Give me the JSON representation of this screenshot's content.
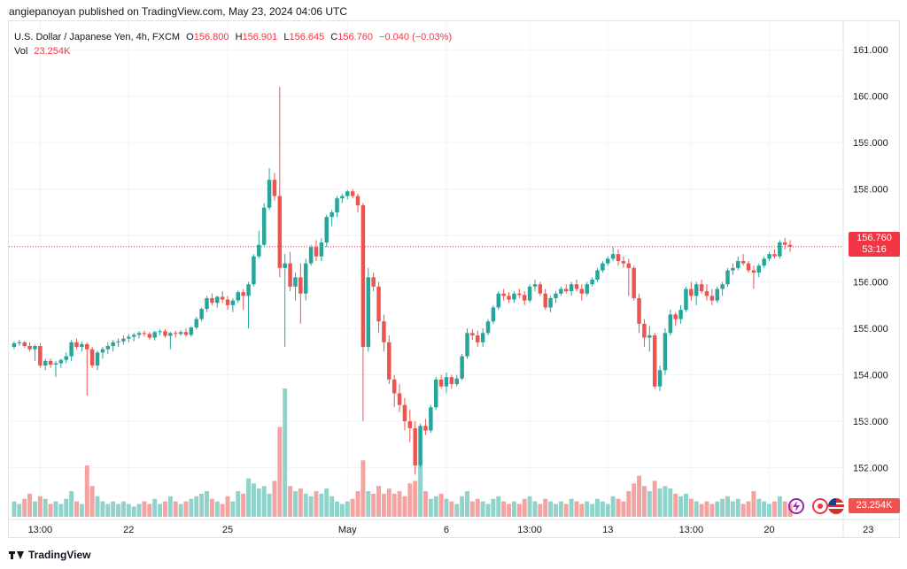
{
  "header": {
    "published": "angiepanoyan published on TradingView.com, May 23, 2024 04:06 UTC"
  },
  "legend": {
    "symbol": "U.S. Dollar / Japanese Yen, 4h, FXCM",
    "open_label": "O",
    "open": "156.800",
    "high_label": "H",
    "high": "156.901",
    "low_label": "L",
    "low": "156.645",
    "close_label": "C",
    "close": "156.760",
    "change": "−0.040 (−0.03%)",
    "vol_label": "Vol",
    "vol": "23.254K"
  },
  "price_badge": {
    "price": "156.760",
    "countdown": "53:16"
  },
  "vol_badge": "23.254K",
  "footer": {
    "brand": "TradingView"
  },
  "colors": {
    "up": "#26a69a",
    "down": "#ef5350",
    "up_vol": "#8fd3cb",
    "down_vol": "#f5a3a1",
    "grid": "#f0f3fa",
    "text": "#131722",
    "price_line": "#f23645"
  },
  "chart_data": {
    "type": "candlestick",
    "title": "U.S. Dollar / Japanese Yen, 4h, FXCM",
    "ylim": [
      151.4,
      161.5
    ],
    "y_ticks": [
      "161.000",
      "160.000",
      "159.000",
      "158.000",
      "157.000",
      "156.000",
      "155.000",
      "154.000",
      "153.000",
      "152.000"
    ],
    "x_ticks": [
      {
        "label": "13:00",
        "i": 5
      },
      {
        "label": "22",
        "i": 22
      },
      {
        "label": "25",
        "i": 41
      },
      {
        "label": "May",
        "i": 64
      },
      {
        "label": "6",
        "i": 83
      },
      {
        "label": "13:00",
        "i": 99
      },
      {
        "label": "13",
        "i": 114
      },
      {
        "label": "13:00",
        "i": 130
      },
      {
        "label": "20",
        "i": 145
      },
      {
        "label": "23",
        "i": 164
      }
    ],
    "last_price": 156.76,
    "candles": [
      [
        154.6,
        154.72,
        154.55,
        154.68,
        0.6
      ],
      [
        154.68,
        154.75,
        154.62,
        154.7,
        0.5
      ],
      [
        154.7,
        154.73,
        154.58,
        154.62,
        0.7
      ],
      [
        154.62,
        154.7,
        154.5,
        154.55,
        0.9
      ],
      [
        154.55,
        154.65,
        154.3,
        154.62,
        0.6
      ],
      [
        154.62,
        154.68,
        154.15,
        154.2,
        0.8
      ],
      [
        154.2,
        154.35,
        154.1,
        154.3,
        0.7
      ],
      [
        154.3,
        154.35,
        154.15,
        154.22,
        0.5
      ],
      [
        154.22,
        154.3,
        153.95,
        154.25,
        0.6
      ],
      [
        154.25,
        154.35,
        154.15,
        154.32,
        0.5
      ],
      [
        154.32,
        154.48,
        154.25,
        154.4,
        0.7
      ],
      [
        154.4,
        154.75,
        154.3,
        154.7,
        1.0
      ],
      [
        154.7,
        154.78,
        154.55,
        154.6,
        0.6
      ],
      [
        154.6,
        154.72,
        154.5,
        154.66,
        0.5
      ],
      [
        154.66,
        154.7,
        153.55,
        154.55,
        2.0
      ],
      [
        154.55,
        154.6,
        154.15,
        154.2,
        1.2
      ],
      [
        154.2,
        154.52,
        154.1,
        154.48,
        0.8
      ],
      [
        154.48,
        154.6,
        154.35,
        154.55,
        0.6
      ],
      [
        154.55,
        154.7,
        154.45,
        154.62,
        0.5
      ],
      [
        154.62,
        154.75,
        154.5,
        154.7,
        0.6
      ],
      [
        154.7,
        154.78,
        154.6,
        154.72,
        0.5
      ],
      [
        154.72,
        154.85,
        154.65,
        154.78,
        0.6
      ],
      [
        154.78,
        154.88,
        154.7,
        154.82,
        0.5
      ],
      [
        154.82,
        154.9,
        154.72,
        154.86,
        0.4
      ],
      [
        154.86,
        154.94,
        154.78,
        154.9,
        0.5
      ],
      [
        154.9,
        154.95,
        154.82,
        154.88,
        0.6
      ],
      [
        154.88,
        154.92,
        154.76,
        154.8,
        0.5
      ],
      [
        154.8,
        154.95,
        154.74,
        154.92,
        0.7
      ],
      [
        154.92,
        154.98,
        154.85,
        154.94,
        0.5
      ],
      [
        154.94,
        154.98,
        154.8,
        154.84,
        0.6
      ],
      [
        154.84,
        154.92,
        154.55,
        154.9,
        0.8
      ],
      [
        154.9,
        154.95,
        154.8,
        154.88,
        0.6
      ],
      [
        154.88,
        154.96,
        154.84,
        154.92,
        0.5
      ],
      [
        154.92,
        155.0,
        154.82,
        154.86,
        0.6
      ],
      [
        154.86,
        155.05,
        154.82,
        155.02,
        0.7
      ],
      [
        155.02,
        155.25,
        154.98,
        155.2,
        0.8
      ],
      [
        155.2,
        155.45,
        155.15,
        155.42,
        0.9
      ],
      [
        155.42,
        155.7,
        155.35,
        155.65,
        1.0
      ],
      [
        155.65,
        155.75,
        155.5,
        155.55,
        0.7
      ],
      [
        155.55,
        155.7,
        155.45,
        155.68,
        0.6
      ],
      [
        155.68,
        155.8,
        155.55,
        155.62,
        0.5
      ],
      [
        155.62,
        155.7,
        155.4,
        155.5,
        0.8
      ],
      [
        155.5,
        155.65,
        155.35,
        155.6,
        0.6
      ],
      [
        155.6,
        155.82,
        155.55,
        155.78,
        1.0
      ],
      [
        155.78,
        155.85,
        155.4,
        155.7,
        0.9
      ],
      [
        155.7,
        156.0,
        155.0,
        155.95,
        1.5
      ],
      [
        155.95,
        156.6,
        155.9,
        156.55,
        1.3
      ],
      [
        156.55,
        157.1,
        156.5,
        156.8,
        1.1
      ],
      [
        156.8,
        157.7,
        156.75,
        157.6,
        1.2
      ],
      [
        157.6,
        158.45,
        157.55,
        158.2,
        0.9
      ],
      [
        158.2,
        158.35,
        157.75,
        157.85,
        1.4
      ],
      [
        157.85,
        160.2,
        156.1,
        156.3,
        3.5
      ],
      [
        156.3,
        156.6,
        154.6,
        156.4,
        5.0
      ],
      [
        156.4,
        156.65,
        155.8,
        155.9,
        1.2
      ],
      [
        155.9,
        156.2,
        155.6,
        156.1,
        1.0
      ],
      [
        156.1,
        156.4,
        155.1,
        155.75,
        1.1
      ],
      [
        155.75,
        156.5,
        155.6,
        156.4,
        0.9
      ],
      [
        156.4,
        156.8,
        156.35,
        156.75,
        0.8
      ],
      [
        156.75,
        156.9,
        156.45,
        156.55,
        1.0
      ],
      [
        156.55,
        156.95,
        156.45,
        156.85,
        0.9
      ],
      [
        156.85,
        157.45,
        156.75,
        157.4,
        1.1
      ],
      [
        157.4,
        157.55,
        157.2,
        157.5,
        0.8
      ],
      [
        157.5,
        157.85,
        157.4,
        157.8,
        0.6
      ],
      [
        157.8,
        157.9,
        157.7,
        157.85,
        0.5
      ],
      [
        157.85,
        157.98,
        157.78,
        157.95,
        0.6
      ],
      [
        157.95,
        158.0,
        157.8,
        157.85,
        0.7
      ],
      [
        157.85,
        157.9,
        157.5,
        157.65,
        1.0
      ],
      [
        157.65,
        157.7,
        153.0,
        154.6,
        2.2
      ],
      [
        154.6,
        156.3,
        154.5,
        156.1,
        1.0
      ],
      [
        156.1,
        156.2,
        155.8,
        155.9,
        0.9
      ],
      [
        155.9,
        156.0,
        154.9,
        155.15,
        1.2
      ],
      [
        155.15,
        155.3,
        154.5,
        154.7,
        0.9
      ],
      [
        154.7,
        154.85,
        153.8,
        153.9,
        1.1
      ],
      [
        153.9,
        154.0,
        153.3,
        153.6,
        0.9
      ],
      [
        153.6,
        153.8,
        153.2,
        153.35,
        1.0
      ],
      [
        153.35,
        153.5,
        152.8,
        153.0,
        0.8
      ],
      [
        153.0,
        153.25,
        152.55,
        152.85,
        1.3
      ],
      [
        152.85,
        153.0,
        151.85,
        152.05,
        1.4
      ],
      [
        152.05,
        152.95,
        152.0,
        152.9,
        2.0
      ],
      [
        152.9,
        153.05,
        152.7,
        152.8,
        1.0
      ],
      [
        152.8,
        153.35,
        152.75,
        153.3,
        0.7
      ],
      [
        153.3,
        153.95,
        153.25,
        153.9,
        0.8
      ],
      [
        153.9,
        154.0,
        153.7,
        153.75,
        0.9
      ],
      [
        153.75,
        154.05,
        153.6,
        153.95,
        0.7
      ],
      [
        153.95,
        154.0,
        153.7,
        153.8,
        0.6
      ],
      [
        153.8,
        154.0,
        153.75,
        153.92,
        0.5
      ],
      [
        153.92,
        154.45,
        153.88,
        154.4,
        0.8
      ],
      [
        154.4,
        155.0,
        154.35,
        154.9,
        1.0
      ],
      [
        154.9,
        154.98,
        154.75,
        154.85,
        0.6
      ],
      [
        154.85,
        154.95,
        154.6,
        154.7,
        0.7
      ],
      [
        154.7,
        155.0,
        154.6,
        154.9,
        0.6
      ],
      [
        154.9,
        155.2,
        154.85,
        155.15,
        0.5
      ],
      [
        155.15,
        155.5,
        155.1,
        155.45,
        0.7
      ],
      [
        155.45,
        155.8,
        155.4,
        155.75,
        0.8
      ],
      [
        155.75,
        155.85,
        155.6,
        155.7,
        0.6
      ],
      [
        155.7,
        155.78,
        155.55,
        155.62,
        0.5
      ],
      [
        155.62,
        155.8,
        155.55,
        155.75,
        0.6
      ],
      [
        155.75,
        155.85,
        155.65,
        155.72,
        0.5
      ],
      [
        155.72,
        155.8,
        155.5,
        155.6,
        0.7
      ],
      [
        155.6,
        155.95,
        155.55,
        155.9,
        0.8
      ],
      [
        155.9,
        156.05,
        155.8,
        155.95,
        0.6
      ],
      [
        155.95,
        156.0,
        155.7,
        155.75,
        0.5
      ],
      [
        155.75,
        155.85,
        155.4,
        155.45,
        0.7
      ],
      [
        155.45,
        155.7,
        155.35,
        155.65,
        0.6
      ],
      [
        155.65,
        155.8,
        155.55,
        155.75,
        0.5
      ],
      [
        155.75,
        155.9,
        155.7,
        155.85,
        0.6
      ],
      [
        155.85,
        155.95,
        155.75,
        155.8,
        0.5
      ],
      [
        155.8,
        156.0,
        155.7,
        155.95,
        0.7
      ],
      [
        155.95,
        156.05,
        155.8,
        155.85,
        0.6
      ],
      [
        155.85,
        155.95,
        155.6,
        155.75,
        0.5
      ],
      [
        155.75,
        156.0,
        155.7,
        155.95,
        0.6
      ],
      [
        155.95,
        156.1,
        155.9,
        156.05,
        0.5
      ],
      [
        156.05,
        156.3,
        156.0,
        156.25,
        0.7
      ],
      [
        156.25,
        156.45,
        156.2,
        156.4,
        0.6
      ],
      [
        156.4,
        156.55,
        156.35,
        156.5,
        0.5
      ],
      [
        156.5,
        156.75,
        156.45,
        156.6,
        0.8
      ],
      [
        156.6,
        156.7,
        156.35,
        156.45,
        0.7
      ],
      [
        156.45,
        156.55,
        156.3,
        156.4,
        0.6
      ],
      [
        156.4,
        156.5,
        155.7,
        156.3,
        1.0
      ],
      [
        156.3,
        156.35,
        155.6,
        155.65,
        1.3
      ],
      [
        155.65,
        155.75,
        154.9,
        155.1,
        1.6
      ],
      [
        155.1,
        155.2,
        154.6,
        154.8,
        1.2
      ],
      [
        154.8,
        155.05,
        154.5,
        154.85,
        1.0
      ],
      [
        154.85,
        154.9,
        153.7,
        153.75,
        1.4
      ],
      [
        153.75,
        154.2,
        153.65,
        154.1,
        1.1
      ],
      [
        154.1,
        155.0,
        154.0,
        154.9,
        1.2
      ],
      [
        154.9,
        155.4,
        154.85,
        155.3,
        1.1
      ],
      [
        155.3,
        155.35,
        155.05,
        155.2,
        0.9
      ],
      [
        155.2,
        155.5,
        155.1,
        155.4,
        0.8
      ],
      [
        155.4,
        155.9,
        155.35,
        155.85,
        0.9
      ],
      [
        155.85,
        156.0,
        155.6,
        155.7,
        0.7
      ],
      [
        155.7,
        156.0,
        155.5,
        155.95,
        0.6
      ],
      [
        155.95,
        156.05,
        155.75,
        155.8,
        0.5
      ],
      [
        155.8,
        155.95,
        155.6,
        155.7,
        0.6
      ],
      [
        155.7,
        155.85,
        155.5,
        155.6,
        0.5
      ],
      [
        155.6,
        155.9,
        155.55,
        155.85,
        0.6
      ],
      [
        155.85,
        156.0,
        155.7,
        155.95,
        0.7
      ],
      [
        155.95,
        156.3,
        155.9,
        156.25,
        0.8
      ],
      [
        156.25,
        156.4,
        156.15,
        156.3,
        0.6
      ],
      [
        156.3,
        156.55,
        156.25,
        156.45,
        0.7
      ],
      [
        156.45,
        156.6,
        156.35,
        156.4,
        0.5
      ],
      [
        156.4,
        156.45,
        156.2,
        156.25,
        0.6
      ],
      [
        156.25,
        156.35,
        155.85,
        156.2,
        1.0
      ],
      [
        156.2,
        156.4,
        156.1,
        156.35,
        0.7
      ],
      [
        156.35,
        156.55,
        156.3,
        156.5,
        0.6
      ],
      [
        156.5,
        156.65,
        156.45,
        156.6,
        0.5
      ],
      [
        156.6,
        156.7,
        156.5,
        156.55,
        0.6
      ],
      [
        156.55,
        156.9,
        156.5,
        156.85,
        0.8
      ],
      [
        156.85,
        156.95,
        156.7,
        156.8,
        0.6
      ],
      [
        156.8,
        156.9,
        156.65,
        156.76,
        0.5
      ]
    ]
  }
}
